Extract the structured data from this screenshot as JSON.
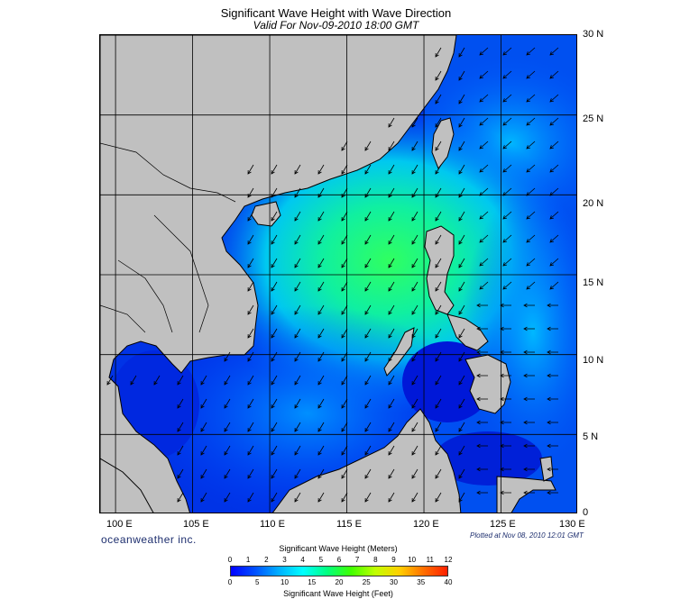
{
  "header": {
    "title": "Significant Wave Height with Wave Direction",
    "subtitle": "Valid For Nov-09-2010 18:00 GMT"
  },
  "map": {
    "region": "South China Sea and Philippine waters",
    "lon_range": [
      99,
      130
    ],
    "lat_range": [
      0,
      30
    ],
    "lon_labels": [
      "100 E",
      "105 E",
      "110 E",
      "115 E",
      "120 E",
      "125 E",
      "130 E"
    ],
    "lat_labels": [
      "30 N",
      "25 N",
      "20 N",
      "15 N",
      "10 N",
      "5 N",
      "0"
    ],
    "land_color": "#c0c0c0",
    "ocean_base_color": "#0030e0",
    "arrow_direction": "predominantly toward southwest; toward west east of Philippines",
    "grid": true
  },
  "footer": {
    "brand": "oceanweather inc.",
    "plotted": "Plotted at Nov 08, 2010 12:01 GMT"
  },
  "colorbar": {
    "meters_title": "Significant Wave Height (Meters)",
    "feet_title": "Significant Wave Height (Feet)",
    "meters_ticks": [
      "0",
      "1",
      "2",
      "3",
      "4",
      "5",
      "6",
      "7",
      "8",
      "9",
      "10",
      "11",
      "12"
    ],
    "feet_ticks": [
      "0",
      "5",
      "10",
      "15",
      "20",
      "25",
      "30",
      "35",
      "40"
    ],
    "colors": [
      "#0000ff",
      "#0050ff",
      "#00b0ff",
      "#00ffff",
      "#00ff80",
      "#40ff00",
      "#c0ff00",
      "#ffd000",
      "#ff7000",
      "#ff2000"
    ]
  }
}
